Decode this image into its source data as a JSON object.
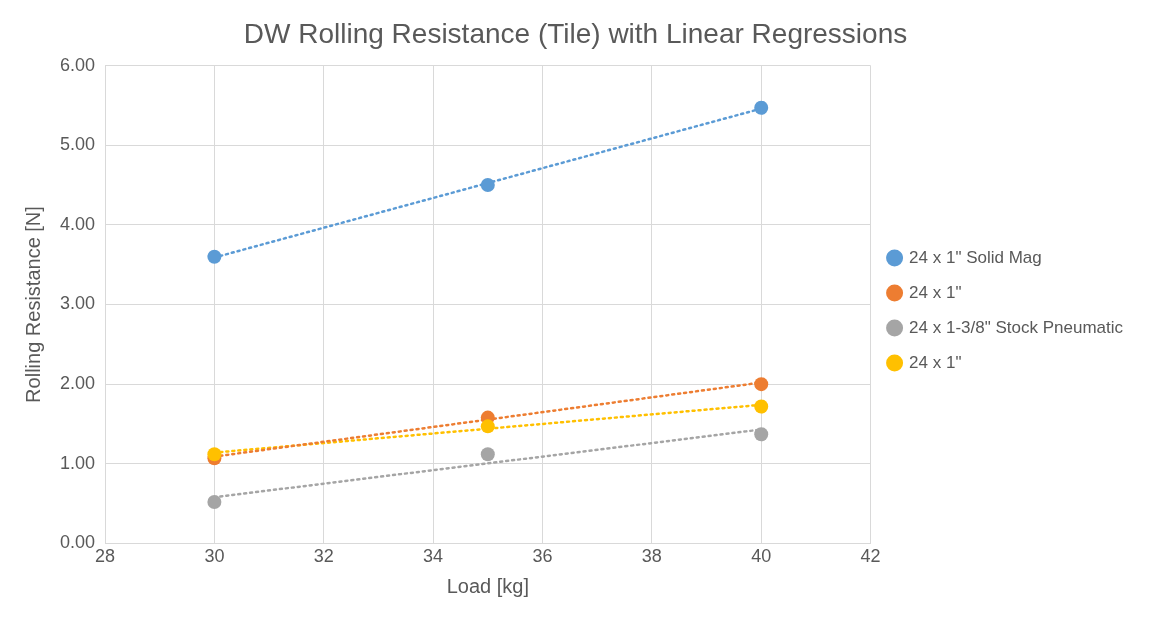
{
  "chart_data": {
    "type": "scatter",
    "title": "DW Rolling Resistance (Tile) with Linear Regressions",
    "xlabel": "Load [kg]",
    "ylabel": "Rolling Resistance [N]",
    "xlim": [
      28,
      42
    ],
    "xticks": [
      28,
      30,
      32,
      34,
      36,
      38,
      40,
      42
    ],
    "ylim": [
      0,
      6
    ],
    "yticks": [
      {
        "value": 0,
        "label": "0.00"
      },
      {
        "value": 1,
        "label": "1.00"
      },
      {
        "value": 2,
        "label": "2.00"
      },
      {
        "value": 3,
        "label": "3.00"
      },
      {
        "value": 4,
        "label": "4.00"
      },
      {
        "value": 5,
        "label": "5.00"
      },
      {
        "value": 6,
        "label": "6.00"
      }
    ],
    "grid": true,
    "legend": "right",
    "series": [
      {
        "name": "24 x 1\" Solid Mag",
        "type": "scatter",
        "marker": "circle",
        "color": "#5b9bd5",
        "x": [
          30,
          35,
          40
        ],
        "values": [
          3.6,
          4.5,
          5.47
        ]
      },
      {
        "name": "24 x 1\"",
        "type": "scatter",
        "marker": "circle",
        "color": "#ed7d31",
        "x": [
          30,
          35,
          40
        ],
        "values": [
          1.07,
          1.58,
          2.0
        ]
      },
      {
        "name": "24 x 1-3/8\" Stock Pneumatic",
        "type": "scatter",
        "marker": "circle",
        "color": "#a5a5a5",
        "x": [
          30,
          35,
          40
        ],
        "values": [
          0.52,
          1.12,
          1.37
        ]
      },
      {
        "name": "24 x 1\"",
        "type": "scatter",
        "marker": "circle",
        "color": "#ffc000",
        "x": [
          30,
          35,
          40
        ],
        "values": [
          1.12,
          1.47,
          1.72
        ]
      },
      {
        "type": "line",
        "line_style": "dotted",
        "marker": "none",
        "color": "#5b9bd5",
        "x": [
          30,
          40
        ],
        "values": [
          3.59,
          5.46
        ]
      },
      {
        "type": "line",
        "line_style": "dotted",
        "marker": "none",
        "color": "#ed7d31",
        "x": [
          30,
          40
        ],
        "values": [
          1.09,
          2.02
        ]
      },
      {
        "type": "line",
        "line_style": "dotted",
        "marker": "none",
        "color": "#a5a5a5",
        "x": [
          30,
          40
        ],
        "values": [
          0.58,
          1.43
        ]
      },
      {
        "type": "line",
        "line_style": "dotted",
        "marker": "none",
        "color": "#ffc000",
        "x": [
          30,
          40
        ],
        "values": [
          1.14,
          1.74
        ]
      }
    ]
  }
}
